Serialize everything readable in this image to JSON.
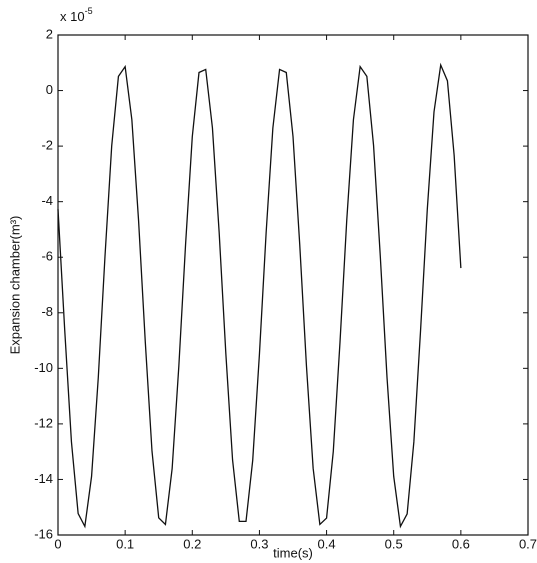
{
  "chart_data": {
    "type": "line",
    "y_multiplier": {
      "base": "x 10",
      "exponent": "-5"
    },
    "xlabel": "time(s)",
    "ylabel": "Expansion chamber(m³)",
    "x": [
      0,
      0.01,
      0.02,
      0.03,
      0.04,
      0.05,
      0.06,
      0.07,
      0.08,
      0.09,
      0.1,
      0.11,
      0.12,
      0.13,
      0.14,
      0.15,
      0.16,
      0.17,
      0.18,
      0.19,
      0.2,
      0.21,
      0.22,
      0.23,
      0.24,
      0.25,
      0.26,
      0.27,
      0.28,
      0.29,
      0.3,
      0.31,
      0.32,
      0.33,
      0.34,
      0.35,
      0.36,
      0.37,
      0.38,
      0.39,
      0.4,
      0.41,
      0.42,
      0.43,
      0.44,
      0.45,
      0.46,
      0.47,
      0.48,
      0.49,
      0.5,
      0.51,
      0.52,
      0.53,
      0.54,
      0.55,
      0.56,
      0.57,
      0.58,
      0.59,
      0.6
    ],
    "series": [
      {
        "color": "#111111",
        "values": [
          -4.27,
          -8.62,
          -12.64,
          -15.23,
          -15.69,
          -13.89,
          -10.33,
          -5.96,
          -1.99,
          0.51,
          0.86,
          -1.05,
          -4.68,
          -9.05,
          -12.98,
          -15.38,
          -15.62,
          -13.61,
          -9.91,
          -5.54,
          -1.66,
          0.65,
          0.76,
          -1.34,
          -5.1,
          -9.48,
          -13.3,
          -15.51,
          -15.51,
          -13.31,
          -9.49,
          -5.11,
          -1.35,
          0.76,
          0.65,
          -1.65,
          -5.53,
          -9.9,
          -13.6,
          -15.62,
          -15.39,
          -12.99,
          -9.06,
          -4.69,
          -1.05,
          0.86,
          0.51,
          -1.98,
          -5.96,
          -10.32,
          -13.89,
          -15.69,
          -15.24,
          -12.65,
          -8.63,
          -4.28,
          -0.77,
          0.92,
          0.35,
          -2.33,
          -6.39
        ]
      }
    ],
    "xlim": [
      0,
      0.7
    ],
    "xticks": [
      0,
      0.1,
      0.2,
      0.3,
      0.4,
      0.5,
      0.6,
      0.7
    ],
    "ylim": [
      -16,
      2
    ],
    "yticks": [
      -16,
      -14,
      -12,
      -10,
      -8,
      -6,
      -4,
      -2,
      0,
      2
    ],
    "grid": false
  }
}
